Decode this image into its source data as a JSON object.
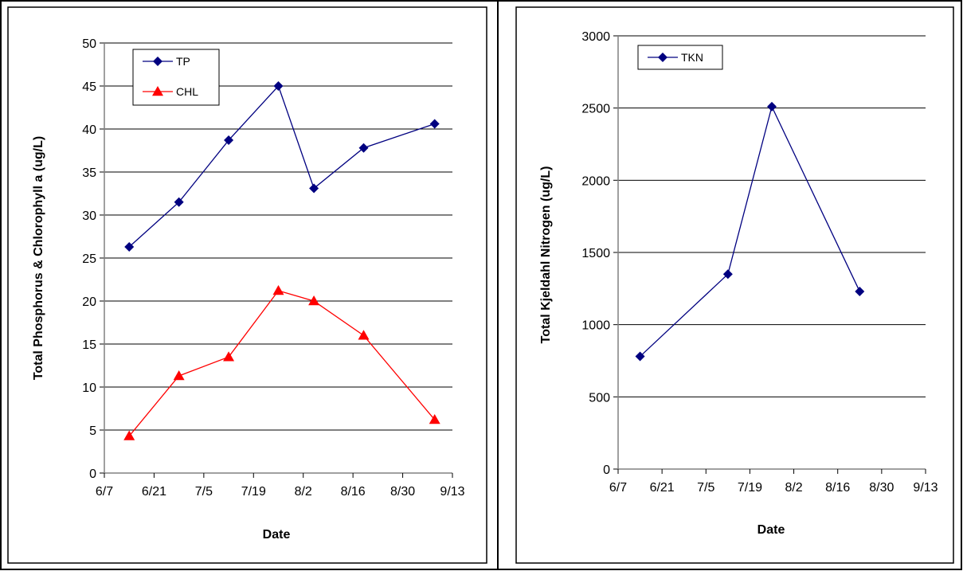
{
  "chart_data": [
    {
      "type": "line",
      "title": "",
      "xlabel": "Date",
      "ylabel": "Total Phosphorus & Chlorophyll a (ug/L)",
      "ylim": [
        0,
        50
      ],
      "yticks": [
        0,
        5,
        10,
        15,
        20,
        25,
        30,
        35,
        40,
        45,
        50
      ],
      "xticks": [
        "6/7",
        "6/21",
        "7/5",
        "7/19",
        "8/2",
        "8/16",
        "8/30",
        "9/13"
      ],
      "grid": true,
      "legend_position": "top-left",
      "series": [
        {
          "name": "TP",
          "color": "#000080",
          "marker": "diamond",
          "x": [
            "6/14",
            "6/28",
            "7/12",
            "7/26",
            "8/5",
            "8/19",
            "9/8"
          ],
          "values": [
            26.3,
            31.5,
            38.7,
            45.0,
            33.1,
            37.8,
            40.6
          ]
        },
        {
          "name": "CHL",
          "color": "#ff0000",
          "marker": "triangle",
          "x": [
            "6/14",
            "6/28",
            "7/12",
            "7/26",
            "8/5",
            "8/19",
            "9/8"
          ],
          "values": [
            4.3,
            11.3,
            13.5,
            21.2,
            20.0,
            16.0,
            6.2
          ]
        }
      ]
    },
    {
      "type": "line",
      "title": "",
      "xlabel": "Date",
      "ylabel": "Total Kjeldahl Nitrogen (ug/L)",
      "ylim": [
        0,
        3000
      ],
      "yticks": [
        0,
        500,
        1000,
        1500,
        2000,
        2500,
        3000
      ],
      "xticks": [
        "6/7",
        "6/21",
        "7/5",
        "7/19",
        "8/2",
        "8/16",
        "8/30",
        "9/13"
      ],
      "grid": true,
      "legend_position": "top-left",
      "series": [
        {
          "name": "TKN",
          "color": "#000080",
          "marker": "diamond",
          "x": [
            "6/14",
            "7/12",
            "7/26",
            "8/23"
          ],
          "values": [
            780,
            1350,
            2510,
            1230
          ]
        }
      ]
    }
  ]
}
